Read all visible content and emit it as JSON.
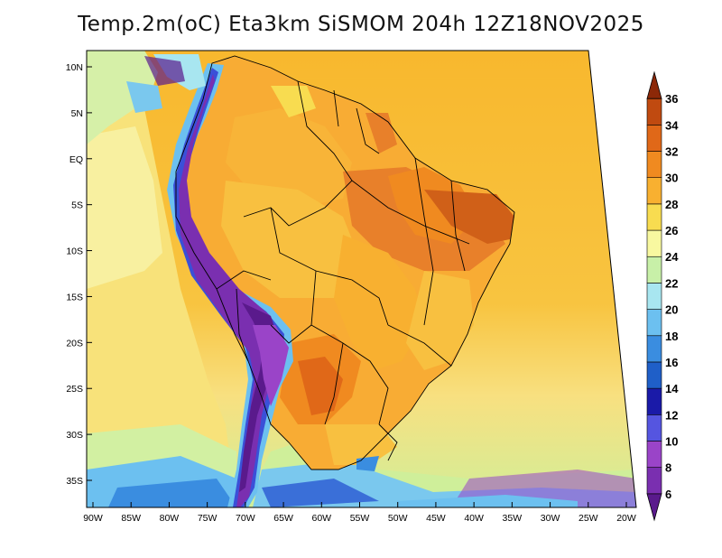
{
  "title": "Temp.2m(oC) Eta3km SiSMOM 204h 12Z18NOV2025",
  "map": {
    "variable": "2m temperature",
    "units": "oC",
    "region": "South America",
    "lat_labels": [
      "10N",
      "5N",
      "EQ",
      "5S",
      "10S",
      "15S",
      "20S",
      "25S",
      "30S",
      "35S"
    ],
    "lat_values": [
      10,
      5,
      0,
      -5,
      -10,
      -15,
      -20,
      -25,
      -30,
      -35
    ],
    "lon_labels": [
      "90W",
      "85W",
      "80W",
      "75W",
      "70W",
      "65W",
      "60W",
      "55W",
      "50W",
      "45W",
      "40W",
      "35W",
      "30W",
      "25W",
      "20W"
    ],
    "lon_values": [
      -90,
      -85,
      -80,
      -75,
      -70,
      -65,
      -60,
      -55,
      -50,
      -45,
      -40,
      -35,
      -30,
      -25,
      -20
    ]
  },
  "colorbar": {
    "labels": [
      "6",
      "8",
      "10",
      "12",
      "14",
      "16",
      "18",
      "20",
      "22",
      "24",
      "26",
      "28",
      "30",
      "32",
      "34",
      "36"
    ],
    "values": [
      6,
      8,
      10,
      12,
      14,
      16,
      18,
      20,
      22,
      24,
      26,
      28,
      30,
      32,
      34,
      36
    ],
    "colors": [
      "#5a1a8c",
      "#7a2fb0",
      "#9a44c8",
      "#5555e0",
      "#1a1aa8",
      "#1f5fc8",
      "#3a8de0",
      "#6cc0f0",
      "#a8e6f0",
      "#c8f0a8",
      "#f8f8a0",
      "#f8dc50",
      "#f8b030",
      "#f08a20",
      "#e06818",
      "#c04a10",
      "#8c2808"
    ]
  }
}
